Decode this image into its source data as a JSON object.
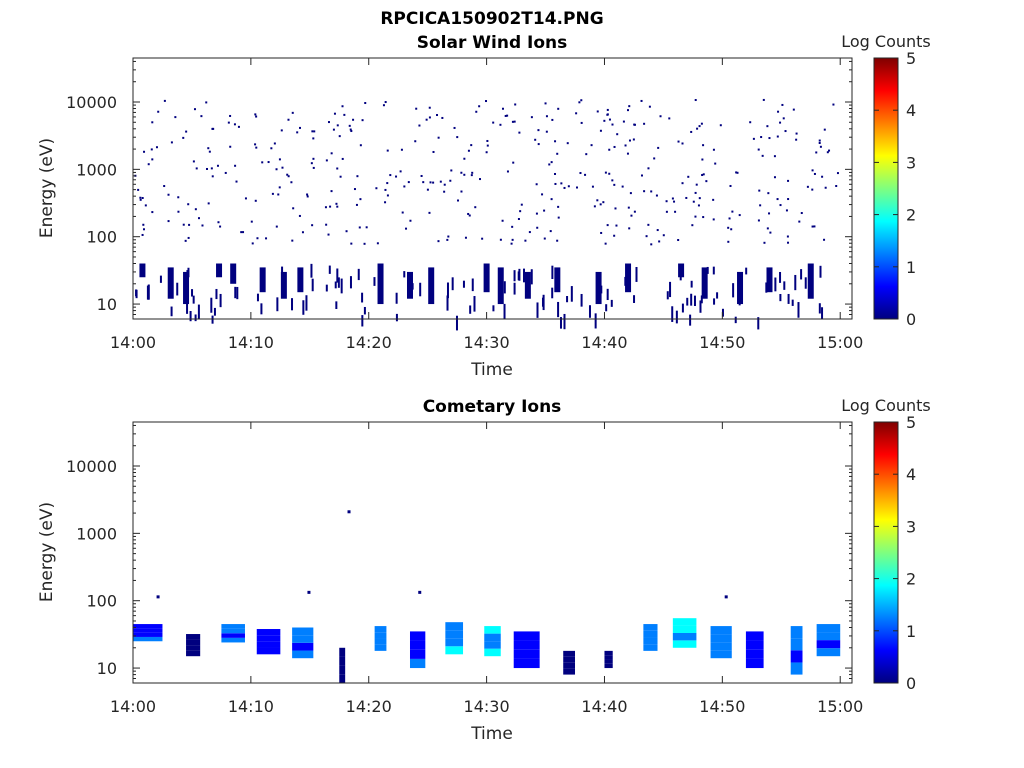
{
  "figure_title": "RPCICA150902T14.PNG",
  "colorscale": [
    "#00007f",
    "#0000ff",
    "#007fff",
    "#00ffff",
    "#7fff7f",
    "#ffff00",
    "#ff7f00",
    "#ff0000",
    "#7f0000"
  ],
  "chart_data": [
    {
      "type": "heatmap",
      "title": "Solar Wind Ions",
      "xlabel": "Time",
      "ylabel": "Energy (eV)",
      "x_ticks": [
        "14:00",
        "14:10",
        "14:20",
        "14:30",
        "14:40",
        "14:50",
        "15:00"
      ],
      "y_scale": "log",
      "y_ticks": [
        "10",
        "100",
        "1000",
        "10000"
      ],
      "ylim": [
        6,
        45000
      ],
      "colorbar": {
        "label": "Log Counts",
        "range": [
          0,
          5
        ],
        "ticks": [
          "0",
          "1",
          "2",
          "3",
          "4",
          "5"
        ]
      },
      "description_values": {
        "x_minutes_range": [
          0,
          60
        ],
        "scattered_counts_level": 0.1,
        "low_energy_band_eV": [
          8,
          40
        ]
      },
      "low_energy_blocks": [
        {
          "t": 0.8,
          "e": [
            25,
            40
          ],
          "v": 0.2
        },
        {
          "t": 3.2,
          "e": [
            12,
            35
          ],
          "v": 0.2
        },
        {
          "t": 4.5,
          "e": [
            10,
            30
          ],
          "v": 0.2
        },
        {
          "t": 7.3,
          "e": [
            25,
            40
          ],
          "v": 0.3
        },
        {
          "t": 8.5,
          "e": [
            20,
            40
          ],
          "v": 0.3
        },
        {
          "t": 11.0,
          "e": [
            15,
            35
          ],
          "v": 0.2
        },
        {
          "t": 12.8,
          "e": [
            12,
            30
          ],
          "v": 0.2
        },
        {
          "t": 14.2,
          "e": [
            15,
            35
          ],
          "v": 0.2
        },
        {
          "t": 21.0,
          "e": [
            10,
            40
          ],
          "v": 0.2
        },
        {
          "t": 23.5,
          "e": [
            12,
            30
          ],
          "v": 0.2
        },
        {
          "t": 25.3,
          "e": [
            10,
            35
          ],
          "v": 0.2
        },
        {
          "t": 30.0,
          "e": [
            15,
            40
          ],
          "v": 0.3
        },
        {
          "t": 31.2,
          "e": [
            10,
            35
          ],
          "v": 0.3
        },
        {
          "t": 33.5,
          "e": [
            12,
            30
          ],
          "v": 0.2
        },
        {
          "t": 36.0,
          "e": [
            15,
            35
          ],
          "v": 0.2
        },
        {
          "t": 39.5,
          "e": [
            10,
            30
          ],
          "v": 0.2
        },
        {
          "t": 42.0,
          "e": [
            15,
            40
          ],
          "v": 0.2
        },
        {
          "t": 46.5,
          "e": [
            25,
            40
          ],
          "v": 0.3
        },
        {
          "t": 48.5,
          "e": [
            12,
            35
          ],
          "v": 0.2
        },
        {
          "t": 51.5,
          "e": [
            10,
            30
          ],
          "v": 0.2
        },
        {
          "t": 54.0,
          "e": [
            15,
            35
          ],
          "v": 0.2
        },
        {
          "t": 57.5,
          "e": [
            12,
            40
          ],
          "v": 0.2
        }
      ]
    },
    {
      "type": "heatmap",
      "title": "Cometary Ions",
      "xlabel": "Time",
      "ylabel": "Energy (eV)",
      "x_ticks": [
        "14:00",
        "14:10",
        "14:20",
        "14:30",
        "14:40",
        "14:50",
        "15:00"
      ],
      "y_scale": "log",
      "y_ticks": [
        "10",
        "100",
        "1000",
        "10000"
      ],
      "ylim": [
        6,
        45000
      ],
      "colorbar": {
        "label": "Log Counts",
        "range": [
          0,
          5
        ],
        "ticks": [
          "0",
          "1",
          "2",
          "3",
          "4",
          "5"
        ]
      },
      "blocks": [
        {
          "t0": 0.0,
          "t1": 2.5,
          "e": [
            25,
            45
          ],
          "v": 1.0
        },
        {
          "t0": 4.5,
          "t1": 5.7,
          "e": [
            15,
            32
          ],
          "v": 0.3
        },
        {
          "t0": 7.5,
          "t1": 9.5,
          "e": [
            24,
            45
          ],
          "v": 1.3
        },
        {
          "t0": 10.5,
          "t1": 12.5,
          "e": [
            16,
            38
          ],
          "v": 0.8
        },
        {
          "t0": 13.5,
          "t1": 15.3,
          "e": [
            14,
            40
          ],
          "v": 1.2
        },
        {
          "t0": 17.5,
          "t1": 18.0,
          "e": [
            6,
            20
          ],
          "v": 0.2
        },
        {
          "t0": 20.5,
          "t1": 21.5,
          "e": [
            18,
            42
          ],
          "v": 1.6
        },
        {
          "t0": 23.5,
          "t1": 24.8,
          "e": [
            10,
            35
          ],
          "v": 1.0
        },
        {
          "t0": 26.5,
          "t1": 28.0,
          "e": [
            16,
            48
          ],
          "v": 1.7
        },
        {
          "t0": 29.8,
          "t1": 31.2,
          "e": [
            15,
            42
          ],
          "v": 1.8
        },
        {
          "t0": 32.3,
          "t1": 34.5,
          "e": [
            10,
            35
          ],
          "v": 0.5
        },
        {
          "t0": 36.5,
          "t1": 37.5,
          "e": [
            8,
            18
          ],
          "v": 0.3
        },
        {
          "t0": 40.0,
          "t1": 40.7,
          "e": [
            10,
            18
          ],
          "v": 0.2
        },
        {
          "t0": 43.3,
          "t1": 44.5,
          "e": [
            18,
            45
          ],
          "v": 1.5
        },
        {
          "t0": 45.8,
          "t1": 47.8,
          "e": [
            20,
            55
          ],
          "v": 2.0
        },
        {
          "t0": 49.0,
          "t1": 50.8,
          "e": [
            14,
            42
          ],
          "v": 1.4
        },
        {
          "t0": 52.0,
          "t1": 53.5,
          "e": [
            10,
            35
          ],
          "v": 0.6
        },
        {
          "t0": 55.8,
          "t1": 56.8,
          "e": [
            8,
            42
          ],
          "v": 1.3
        },
        {
          "t0": 58.0,
          "t1": 60.0,
          "e": [
            15,
            45
          ],
          "v": 1.2
        }
      ],
      "points": [
        {
          "t": 2.0,
          "e": 120,
          "v": 0.1
        },
        {
          "t": 14.8,
          "e": 140,
          "v": 0.1
        },
        {
          "t": 18.2,
          "e": 2200,
          "v": 0.1
        },
        {
          "t": 24.2,
          "e": 140,
          "v": 0.1
        },
        {
          "t": 50.2,
          "e": 120,
          "v": 0.1
        }
      ]
    }
  ]
}
